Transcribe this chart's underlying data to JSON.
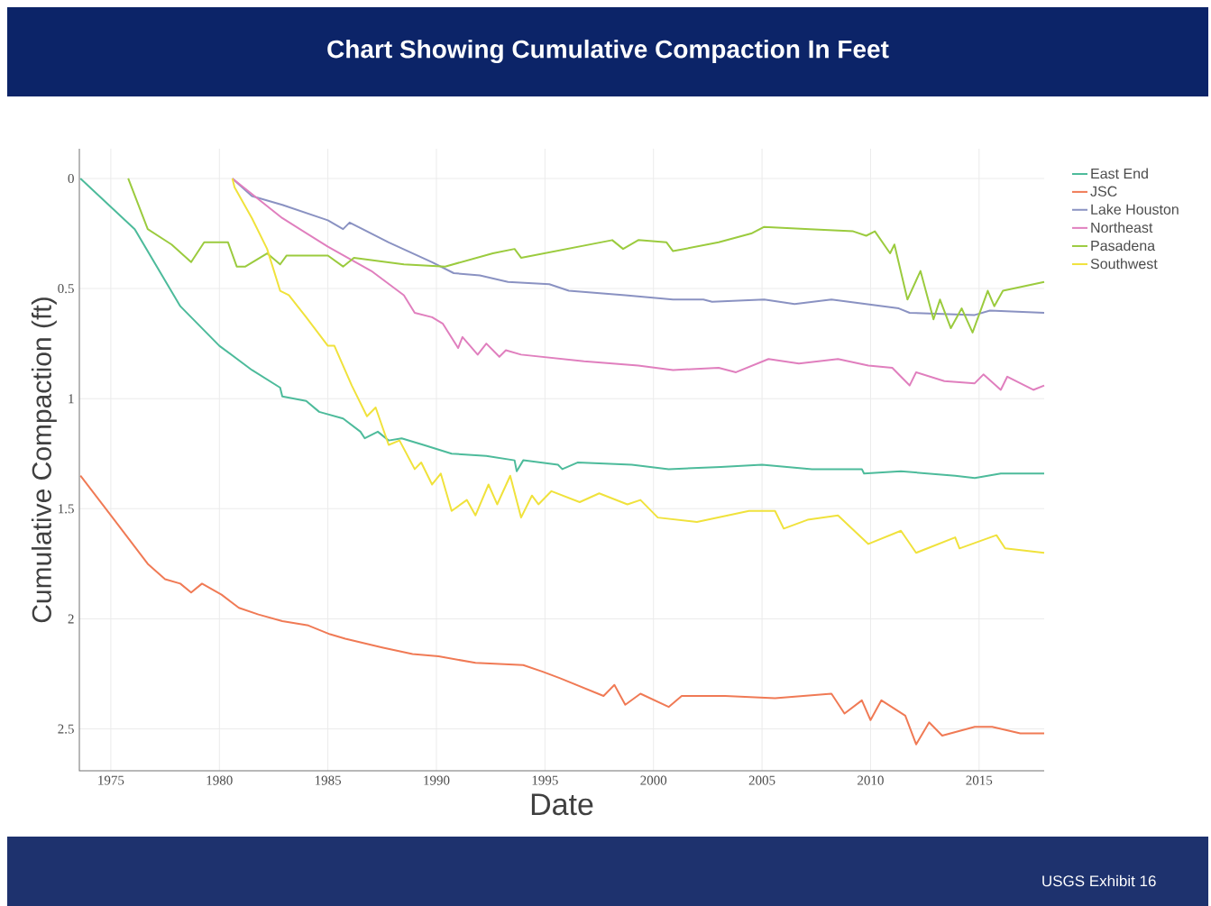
{
  "chart_data": {
    "type": "line",
    "title": "Chart Showing Cumulative Compaction In Feet",
    "xlabel": "Date",
    "ylabel": "Cumulative Compaction (ft)",
    "annotations": [
      "USGS Exhibit 16"
    ],
    "xlim": [
      1973.55,
      2018
    ],
    "xticks": [
      1975,
      1980,
      1985,
      1990,
      1995,
      2000,
      2005,
      2010,
      2015
    ],
    "ylim": [
      2.69,
      -0.135
    ],
    "yticks": [
      0,
      0.5,
      1,
      1.5,
      2,
      2.5
    ],
    "grid": true,
    "legend": "top right",
    "series": [
      {
        "name": "East End",
        "color": "#4dbb9b",
        "x": [
          1973.6,
          1976.1,
          1978.2,
          1980,
          1981.5,
          1982.8,
          1982.9,
          1984,
          1984.6,
          1985.7,
          1986.5,
          1986.7,
          1987.3,
          1987.8,
          1988.4,
          1989.4,
          1990.7,
          1992.3,
          1993.6,
          1993.7,
          1994,
          1995.6,
          1995.8,
          1996.5,
          1999,
          2000.7,
          2003.1,
          2005,
          2007.3,
          2009.6,
          2009.7,
          2011.4,
          2013.9,
          2014.8,
          2016,
          2018
        ],
        "values": [
          0,
          0.23,
          0.58,
          0.76,
          0.87,
          0.95,
          0.99,
          1.01,
          1.06,
          1.09,
          1.15,
          1.18,
          1.15,
          1.19,
          1.18,
          1.21,
          1.25,
          1.26,
          1.28,
          1.33,
          1.28,
          1.3,
          1.32,
          1.29,
          1.3,
          1.32,
          1.31,
          1.3,
          1.32,
          1.32,
          1.34,
          1.33,
          1.35,
          1.36,
          1.34,
          1.34
        ]
      },
      {
        "name": "JSC",
        "color": "#f07a55",
        "x": [
          1973.6,
          1975,
          1976.7,
          1977.5,
          1978.2,
          1978.7,
          1979.2,
          1980.1,
          1980.9,
          1981.8,
          1982.9,
          1984.1,
          1985.1,
          1985.8,
          1987.5,
          1988.9,
          1990.1,
          1991.8,
          1994,
          1994.9,
          1995.7,
          1997.7,
          1998.2,
          1998.7,
          1999.4,
          2000.7,
          2001.3,
          2003.3,
          2005.6,
          2008.2,
          2008.8,
          2009.6,
          2010,
          2010.5,
          2011.6,
          2012.1,
          2012.7,
          2013.3,
          2014.8,
          2015.6,
          2016.9,
          2018
        ],
        "values": [
          1.35,
          1.53,
          1.75,
          1.82,
          1.84,
          1.88,
          1.84,
          1.89,
          1.95,
          1.98,
          2.01,
          2.03,
          2.07,
          2.09,
          2.13,
          2.16,
          2.17,
          2.2,
          2.21,
          2.24,
          2.27,
          2.35,
          2.3,
          2.39,
          2.34,
          2.4,
          2.35,
          2.35,
          2.36,
          2.34,
          2.43,
          2.37,
          2.46,
          2.37,
          2.44,
          2.57,
          2.47,
          2.53,
          2.49,
          2.49,
          2.52,
          2.52
        ]
      },
      {
        "name": "Lake Houston",
        "color": "#8a92c2",
        "x": [
          1980.6,
          1981.5,
          1982.9,
          1985,
          1985.7,
          1986,
          1987.8,
          1989.8,
          1990.8,
          1992,
          1993.3,
          1995.2,
          1996.1,
          1998.7,
          2000.9,
          2002.3,
          2002.7,
          2005.1,
          2006.5,
          2008.2,
          2011.3,
          2011.8,
          2014.8,
          2015.5,
          2018
        ],
        "values": [
          0,
          0.08,
          0.12,
          0.19,
          0.23,
          0.2,
          0.29,
          0.38,
          0.43,
          0.44,
          0.47,
          0.48,
          0.51,
          0.53,
          0.55,
          0.55,
          0.56,
          0.55,
          0.57,
          0.55,
          0.59,
          0.61,
          0.62,
          0.6,
          0.61
        ]
      },
      {
        "name": "Northeast",
        "color": "#e07fbe",
        "x": [
          1980.6,
          1982.9,
          1985,
          1987,
          1988.5,
          1989,
          1989.8,
          1990.3,
          1991,
          1991.2,
          1991.9,
          1992.3,
          1992.9,
          1993.2,
          1993.9,
          1996.8,
          1999.3,
          2000.9,
          2003,
          2003.8,
          2005.3,
          2006.7,
          2008.5,
          2009.9,
          2011,
          2011.8,
          2012.1,
          2013.4,
          2014.8,
          2015.2,
          2016,
          2016.3,
          2017.5,
          2018
        ],
        "values": [
          0,
          0.18,
          0.31,
          0.42,
          0.53,
          0.61,
          0.63,
          0.66,
          0.77,
          0.72,
          0.8,
          0.75,
          0.81,
          0.78,
          0.8,
          0.83,
          0.85,
          0.87,
          0.86,
          0.88,
          0.82,
          0.84,
          0.82,
          0.85,
          0.86,
          0.94,
          0.88,
          0.92,
          0.93,
          0.89,
          0.96,
          0.9,
          0.96,
          0.94
        ]
      },
      {
        "name": "Pasadena",
        "color": "#9bcb3e",
        "x": [
          1975.8,
          1976.7,
          1977.8,
          1978.7,
          1979.3,
          1980.4,
          1980.8,
          1981.2,
          1982.2,
          1982.8,
          1983.1,
          1985,
          1985.7,
          1986.2,
          1988.5,
          1990.4,
          1992.6,
          1993.6,
          1993.9,
          1998.1,
          1998.6,
          1999.3,
          2000.6,
          2000.9,
          2003,
          2004.5,
          2005.1,
          2007.2,
          2009.2,
          2009.8,
          2010.2,
          2010.9,
          2011.1,
          2011.7,
          2012.3,
          2012.9,
          2013.2,
          2013.7,
          2014.2,
          2014.7,
          2015.4,
          2015.7,
          2016.1,
          2018
        ],
        "values": [
          0,
          0.23,
          0.3,
          0.38,
          0.29,
          0.29,
          0.4,
          0.4,
          0.34,
          0.39,
          0.35,
          0.35,
          0.4,
          0.36,
          0.39,
          0.4,
          0.34,
          0.32,
          0.36,
          0.28,
          0.32,
          0.28,
          0.29,
          0.33,
          0.29,
          0.25,
          0.22,
          0.23,
          0.24,
          0.26,
          0.24,
          0.34,
          0.3,
          0.55,
          0.42,
          0.64,
          0.55,
          0.68,
          0.59,
          0.7,
          0.51,
          0.58,
          0.51,
          0.47
        ]
      },
      {
        "name": "Southwest",
        "color": "#f0e23c",
        "x": [
          1980.6,
          1980.7,
          1981.5,
          1982.2,
          1982.8,
          1983.2,
          1984,
          1985,
          1985.3,
          1986.1,
          1986.8,
          1987.2,
          1987.8,
          1988.3,
          1989,
          1989.3,
          1989.8,
          1990.2,
          1990.7,
          1991.4,
          1991.8,
          1992.4,
          1992.8,
          1993.4,
          1993.9,
          1994.4,
          1994.7,
          1995.3,
          1996.6,
          1997.5,
          1998.8,
          1999.4,
          2000.2,
          2002,
          2004.4,
          2005.6,
          2006,
          2007.1,
          2008.5,
          2009.9,
          2011.4,
          2012.1,
          2013.9,
          2014.1,
          2015.8,
          2016.2,
          2018
        ],
        "values": [
          0,
          0.04,
          0.18,
          0.32,
          0.51,
          0.53,
          0.63,
          0.76,
          0.76,
          0.94,
          1.08,
          1.04,
          1.21,
          1.19,
          1.32,
          1.29,
          1.39,
          1.34,
          1.51,
          1.46,
          1.53,
          1.39,
          1.48,
          1.35,
          1.54,
          1.44,
          1.48,
          1.42,
          1.47,
          1.43,
          1.48,
          1.46,
          1.54,
          1.56,
          1.51,
          1.51,
          1.59,
          1.55,
          1.53,
          1.66,
          1.6,
          1.7,
          1.63,
          1.68,
          1.62,
          1.68,
          1.7
        ]
      }
    ]
  }
}
